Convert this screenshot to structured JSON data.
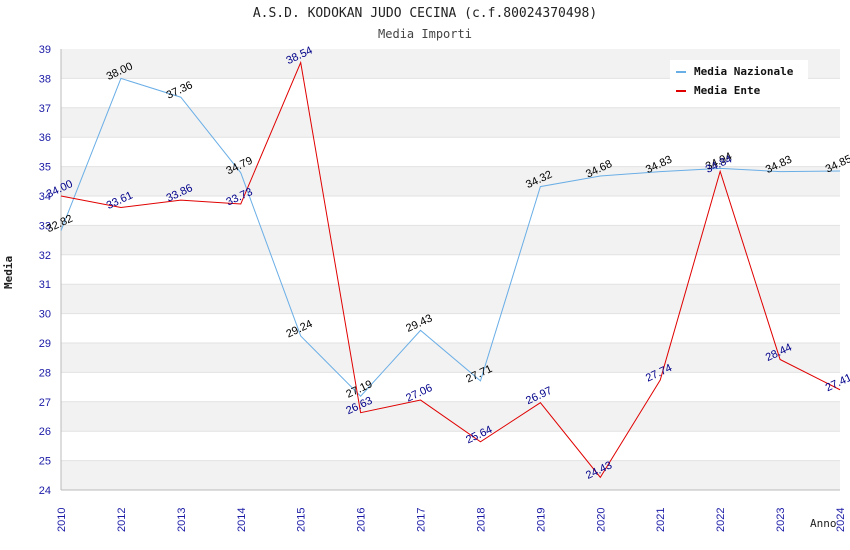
{
  "header": {
    "title": "A.S.D. KODOKAN JUDO CECINA (c.f.80024370498)",
    "subtitle": "Media Importi"
  },
  "chart_data": {
    "type": "line",
    "title": "A.S.D. KODOKAN JUDO CECINA (c.f.80024370498)",
    "subtitle": "Media Importi",
    "xlabel": "Anno",
    "ylabel": "Media",
    "categories": [
      "2010",
      "2012",
      "2013",
      "2014",
      "2015",
      "2016",
      "2017",
      "2018",
      "2019",
      "2020",
      "2021",
      "2022",
      "2023",
      "2024"
    ],
    "ylim": [
      24,
      39
    ],
    "yticks": [
      24,
      25,
      26,
      27,
      28,
      29,
      30,
      31,
      32,
      33,
      34,
      35,
      36,
      37,
      38,
      39
    ],
    "grid": true,
    "legend_position": "top-right",
    "series": [
      {
        "name": "Media Nazionale",
        "color": "#6aaee6",
        "label_color": "#000000",
        "values": [
          32.82,
          38.0,
          37.36,
          34.79,
          29.24,
          27.19,
          29.43,
          27.71,
          34.32,
          34.68,
          34.83,
          34.94,
          34.83,
          34.85
        ],
        "labels": [
          "32.82",
          "38.00",
          "37.36",
          "34.79",
          "29.24",
          "27.19",
          "29.43",
          "27.71",
          "34.32",
          "34.68",
          "34.83",
          "34.94",
          "34.83",
          "34.85"
        ]
      },
      {
        "name": "Media Ente",
        "color": "#e00000",
        "label_color": "#00008b",
        "values": [
          34.0,
          33.61,
          33.86,
          33.73,
          38.54,
          26.63,
          27.06,
          25.64,
          26.97,
          24.43,
          27.74,
          34.84,
          28.44,
          27.41
        ],
        "labels": [
          "34.00",
          "33.61",
          "33.86",
          "33.73",
          "38.54",
          "26.63",
          "27.06",
          "25.64",
          "26.97",
          "24.43",
          "27.74",
          "34.84",
          "28.44",
          "27.41"
        ]
      }
    ]
  }
}
